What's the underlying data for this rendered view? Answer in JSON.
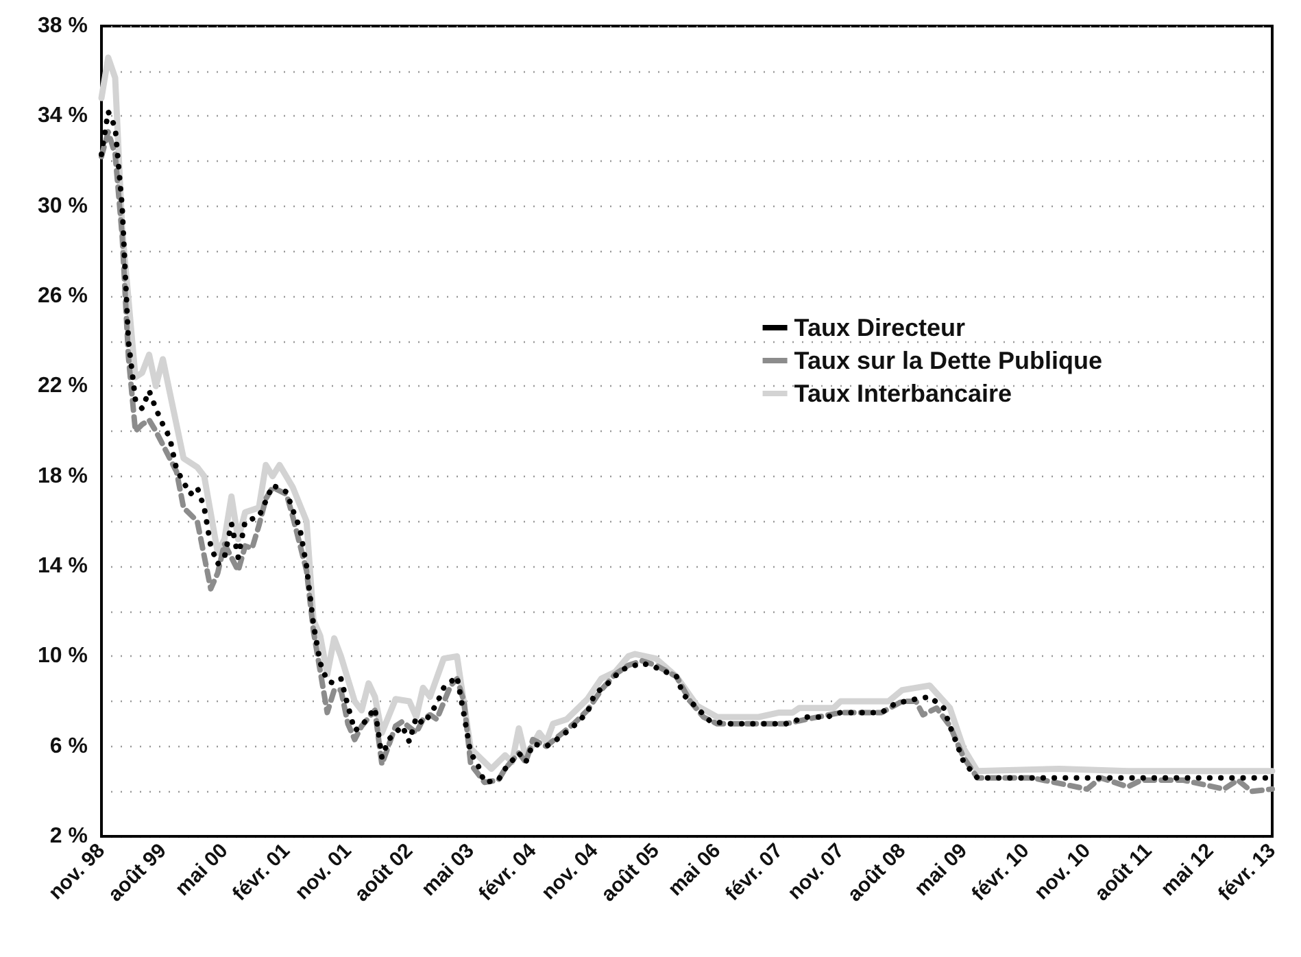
{
  "chart_data": {
    "type": "line",
    "xlim": [
      "1998-11",
      "2013-02"
    ],
    "xticks": [
      {
        "value": "1998-11",
        "label": "nov. 98"
      },
      {
        "value": "1999-08",
        "label": "août 99"
      },
      {
        "value": "2000-05",
        "label": "mai 00"
      },
      {
        "value": "2001-02",
        "label": "févr. 01"
      },
      {
        "value": "2001-11",
        "label": "nov. 01"
      },
      {
        "value": "2002-08",
        "label": "août 02"
      },
      {
        "value": "2003-05",
        "label": "mai 03"
      },
      {
        "value": "2004-02",
        "label": "févr. 04"
      },
      {
        "value": "2004-11",
        "label": "nov. 04"
      },
      {
        "value": "2005-08",
        "label": "août 05"
      },
      {
        "value": "2006-05",
        "label": "mai 06"
      },
      {
        "value": "2007-02",
        "label": "févr. 07"
      },
      {
        "value": "2007-11",
        "label": "nov. 07"
      },
      {
        "value": "2008-08",
        "label": "août 08"
      },
      {
        "value": "2009-05",
        "label": "mai 09"
      },
      {
        "value": "2010-02",
        "label": "févr. 10"
      },
      {
        "value": "2010-11",
        "label": "nov. 10"
      },
      {
        "value": "2011-08",
        "label": "août 11"
      },
      {
        "value": "2012-05",
        "label": "mai 12"
      },
      {
        "value": "2013-02",
        "label": "févr. 13"
      }
    ],
    "ylim": [
      2,
      38
    ],
    "yticks": [
      {
        "value": 2,
        "label": "2 %"
      },
      {
        "value": 4,
        "label": null
      },
      {
        "value": 6,
        "label": "6 %"
      },
      {
        "value": 8,
        "label": null
      },
      {
        "value": 10,
        "label": "10 %"
      },
      {
        "value": 12,
        "label": null
      },
      {
        "value": 14,
        "label": "14 %"
      },
      {
        "value": 16,
        "label": null
      },
      {
        "value": 18,
        "label": "18 %"
      },
      {
        "value": 20,
        "label": null
      },
      {
        "value": 22,
        "label": "22 %"
      },
      {
        "value": 24,
        "label": null
      },
      {
        "value": 26,
        "label": "26 %"
      },
      {
        "value": 28,
        "label": null
      },
      {
        "value": 30,
        "label": "30 %"
      },
      {
        "value": 32,
        "label": null
      },
      {
        "value": 34,
        "label": "34 %"
      },
      {
        "value": 36,
        "label": null
      },
      {
        "value": 38,
        "label": "38 %"
      }
    ],
    "grid": "y",
    "legend": "right",
    "marker": "none",
    "series": [
      {
        "name": "Taux Directeur",
        "color": "#000000",
        "line_style": "dotted",
        "x": [
          "1998-11",
          "1998-12",
          "1999-01",
          "1999-02",
          "1999-03",
          "1999-04",
          "1999-05",
          "1999-06",
          "1999-07",
          "1999-08",
          "1999-09",
          "1999-10",
          "1999-12",
          "2000-01",
          "2000-02",
          "2000-03",
          "2000-04",
          "2000-05",
          "2000-06",
          "2000-07",
          "2000-08",
          "2000-10",
          "2000-11",
          "2000-12",
          "2001-02",
          "2001-03",
          "2001-04",
          "2001-05",
          "2001-06",
          "2001-07",
          "2001-08",
          "2001-09",
          "2001-10",
          "2001-11",
          "2001-12",
          "2002-01",
          "2002-03",
          "2002-04",
          "2002-05",
          "2002-07",
          "2002-08",
          "2002-09",
          "2002-10",
          "2002-11",
          "2002-12",
          "2003-01",
          "2003-03",
          "2003-04",
          "2003-05",
          "2003-06",
          "2003-07",
          "2003-09",
          "2003-10",
          "2003-12",
          "2004-01",
          "2004-02",
          "2004-04",
          "2004-06",
          "2004-08",
          "2004-10",
          "2004-11",
          "2005-01",
          "2005-03",
          "2005-06",
          "2005-08",
          "2005-11",
          "2005-12",
          "2006-02",
          "2006-04",
          "2006-07",
          "2007-03",
          "2007-06",
          "2007-09",
          "2007-11",
          "2008-05",
          "2008-07",
          "2008-10",
          "2008-12",
          "2009-02",
          "2009-03",
          "2009-04",
          "2009-05",
          "2009-07",
          "2013-02"
        ],
        "values": [
          32.3,
          34.2,
          33.5,
          30.0,
          24.0,
          21.4,
          21.0,
          21.8,
          21.0,
          20.3,
          19.7,
          18.3,
          17.2,
          17.5,
          16.6,
          14.9,
          14.1,
          14.4,
          15.9,
          14.4,
          16.0,
          16.2,
          16.9,
          17.6,
          17.3,
          16.5,
          15.7,
          14.0,
          11.4,
          9.7,
          8.9,
          8.8,
          9.0,
          7.8,
          6.7,
          6.9,
          7.7,
          5.5,
          6.3,
          6.9,
          6.2,
          7.3,
          7.0,
          7.4,
          7.9,
          8.6,
          9.1,
          7.4,
          5.7,
          5.2,
          4.4,
          4.5,
          5.0,
          5.7,
          5.3,
          6.1,
          6.0,
          6.4,
          6.9,
          7.5,
          8.3,
          8.8,
          9.4,
          9.7,
          9.5,
          9.1,
          8.3,
          7.7,
          7.1,
          7.0,
          7.0,
          7.3,
          7.3,
          7.5,
          7.5,
          7.9,
          8.1,
          8.2,
          7.7,
          6.9,
          6.1,
          5.3,
          4.6,
          4.6
        ]
      },
      {
        "name": "Taux sur la Dette Publique",
        "color": "#8c8c8c",
        "line_style": "dashed",
        "x": [
          "1998-11",
          "1998-12",
          "1999-01",
          "1999-02",
          "1999-03",
          "1999-04",
          "1999-05",
          "1999-06",
          "1999-07",
          "1999-08",
          "1999-10",
          "1999-11",
          "2000-01",
          "2000-03",
          "2000-04",
          "2000-05",
          "2000-07",
          "2000-08",
          "2000-09",
          "2000-10",
          "2000-11",
          "2000-12",
          "2001-02",
          "2001-03",
          "2001-05",
          "2001-06",
          "2001-08",
          "2001-09",
          "2001-10",
          "2001-11",
          "2001-12",
          "2002-01",
          "2002-03",
          "2002-04",
          "2002-06",
          "2002-07",
          "2002-09",
          "2002-10",
          "2002-11",
          "2002-12",
          "2003-02",
          "2003-03",
          "2003-04",
          "2003-05",
          "2003-06",
          "2003-07",
          "2003-09",
          "2003-10",
          "2003-12",
          "2004-01",
          "2004-02",
          "2004-04",
          "2004-06",
          "2004-08",
          "2004-10",
          "2004-12",
          "2005-02",
          "2005-04",
          "2005-06",
          "2005-08",
          "2005-11",
          "2006-01",
          "2006-03",
          "2006-05",
          "2007-03",
          "2007-06",
          "2007-11",
          "2008-05",
          "2008-08",
          "2008-10",
          "2008-11",
          "2009-01",
          "2009-03",
          "2009-05",
          "2009-07",
          "2010-03",
          "2010-11",
          "2011-01",
          "2011-05",
          "2011-07",
          "2012-01",
          "2012-07",
          "2012-09",
          "2012-11",
          "2013-02"
        ],
        "values": [
          32.2,
          33.3,
          32.3,
          28.7,
          23.3,
          20.0,
          20.3,
          20.5,
          20.0,
          19.4,
          18.2,
          16.6,
          16.0,
          13.0,
          13.7,
          15.0,
          13.8,
          14.9,
          14.8,
          15.8,
          17.0,
          17.5,
          17.2,
          16.2,
          13.8,
          11.1,
          7.5,
          8.5,
          8.5,
          7.0,
          6.3,
          6.9,
          7.6,
          5.2,
          6.9,
          7.1,
          6.6,
          7.2,
          7.4,
          7.2,
          8.7,
          9.0,
          8.0,
          5.2,
          4.8,
          4.4,
          4.5,
          5.0,
          5.7,
          5.3,
          6.3,
          6.0,
          6.5,
          7.0,
          7.6,
          8.5,
          9.2,
          9.6,
          9.8,
          9.6,
          9.1,
          8.0,
          7.3,
          7.0,
          7.0,
          7.2,
          7.5,
          7.5,
          8.0,
          8.0,
          7.4,
          7.7,
          6.9,
          5.5,
          4.6,
          4.6,
          4.1,
          4.6,
          4.2,
          4.5,
          4.5,
          4.1,
          4.5,
          4.0,
          4.1
        ]
      },
      {
        "name": "Taux Interbancaire",
        "color": "#d3d3d3",
        "line_style": "solid",
        "x": [
          "1998-11",
          "1998-12",
          "1999-01",
          "1999-02",
          "1999-04",
          "1999-05",
          "1999-06",
          "1999-07",
          "1999-08",
          "1999-11",
          "2000-01",
          "2000-02",
          "2000-04",
          "2000-05",
          "2000-06",
          "2000-07",
          "2000-08",
          "2000-10",
          "2000-11",
          "2000-12",
          "2001-01",
          "2001-03",
          "2001-05",
          "2001-06",
          "2001-07",
          "2001-08",
          "2001-09",
          "2001-10",
          "2001-12",
          "2002-01",
          "2002-02",
          "2002-03",
          "2002-04",
          "2002-06",
          "2002-08",
          "2002-09",
          "2002-10",
          "2002-11",
          "2003-01",
          "2003-03",
          "2003-05",
          "2003-08",
          "2003-10",
          "2003-11",
          "2003-12",
          "2004-01",
          "2004-03",
          "2004-04",
          "2004-05",
          "2004-07",
          "2004-10",
          "2004-12",
          "2005-02",
          "2005-04",
          "2005-05",
          "2005-08",
          "2005-11",
          "2006-02",
          "2006-05",
          "2006-11",
          "2007-02",
          "2007-04",
          "2007-05",
          "2007-10",
          "2007-11",
          "2008-06",
          "2008-08",
          "2008-12",
          "2009-03",
          "2009-05",
          "2009-07",
          "2010-07",
          "2011-05",
          "2013-02"
        ],
        "values": [
          34.8,
          36.6,
          35.7,
          29.0,
          22.4,
          22.6,
          23.4,
          22.0,
          23.2,
          18.8,
          18.4,
          18.0,
          14.6,
          15.2,
          17.1,
          15.2,
          16.4,
          16.6,
          18.5,
          18.0,
          18.5,
          17.5,
          16.0,
          11.6,
          10.9,
          9.2,
          10.8,
          10.0,
          8.0,
          7.6,
          8.8,
          8.2,
          6.6,
          8.1,
          8.0,
          7.3,
          8.6,
          8.2,
          9.9,
          10.0,
          5.9,
          5.0,
          5.6,
          5.3,
          6.8,
          5.5,
          6.6,
          6.2,
          7.0,
          7.2,
          8.1,
          9.0,
          9.3,
          10.0,
          10.1,
          9.9,
          9.1,
          7.8,
          7.3,
          7.3,
          7.5,
          7.5,
          7.7,
          7.7,
          8.0,
          8.0,
          8.5,
          8.7,
          7.7,
          5.9,
          4.9,
          5.0,
          4.9,
          4.9
        ]
      }
    ]
  }
}
